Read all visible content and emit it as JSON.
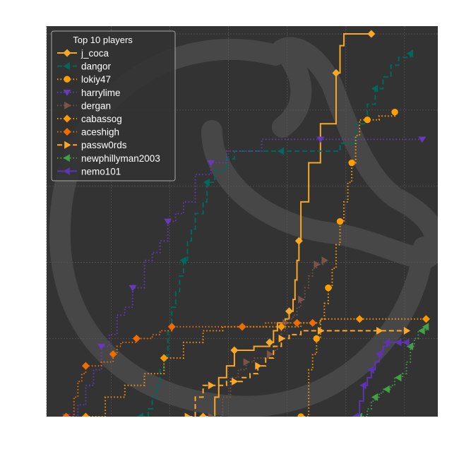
{
  "chart_data": {
    "type": "line",
    "title": "",
    "xlabel": "",
    "ylabel": "",
    "xlim": [
      0,
      100
    ],
    "ylim": [
      0,
      100
    ],
    "grid": true,
    "legend": {
      "title": "Top 10 players",
      "placement": "top-left"
    },
    "colors": {
      "background": "#333333",
      "grid": "#555555",
      "watermark": "#474747"
    },
    "series": [
      {
        "name": "j_coca",
        "color": "#F9A825",
        "linestyle": "solid",
        "marker": "diamond",
        "x": [
          40,
          43,
          44,
          46,
          48,
          51,
          53,
          56,
          57,
          58,
          59,
          61,
          62,
          63,
          63.5,
          64,
          64.5,
          65,
          67,
          70,
          74,
          75,
          76,
          80,
          83
        ],
        "y": [
          0,
          5,
          10,
          13,
          17,
          17,
          18,
          18,
          19,
          22,
          24,
          25,
          27,
          30,
          35,
          40,
          45,
          55,
          65,
          75,
          88,
          95,
          98,
          98,
          98
        ]
      },
      {
        "name": "dangor",
        "color": "#00695C",
        "linestyle": "dashed",
        "marker": "triangle-left",
        "x": [
          24,
          26,
          27,
          28,
          29,
          30,
          31,
          32,
          33,
          34,
          35,
          36,
          37,
          38,
          40,
          41,
          43,
          46,
          48,
          54,
          60,
          68,
          75,
          79,
          82,
          84,
          86,
          88,
          90,
          93
        ],
        "y": [
          0,
          2,
          5,
          8,
          12,
          15,
          22,
          28,
          32,
          36,
          40,
          45,
          48,
          52,
          55,
          60,
          63,
          66,
          68,
          68,
          68,
          68,
          70,
          75,
          80,
          84,
          87,
          90,
          92,
          93
        ]
      },
      {
        "name": "lokiy47",
        "color": "#FFA000",
        "linestyle": "dotted",
        "marker": "circle",
        "x": [
          65,
          67,
          68,
          69,
          70,
          71,
          72,
          73,
          74,
          75,
          76,
          77,
          78,
          79,
          80,
          82,
          85,
          89
        ],
        "y": [
          0,
          12,
          16,
          20,
          25,
          29,
          33,
          38,
          44,
          50,
          55,
          60,
          65,
          72,
          76,
          76,
          77,
          78
        ]
      },
      {
        "name": "harrylime",
        "color": "#673AB7",
        "linestyle": "dotted",
        "marker": "triangle-down",
        "x": [
          5,
          8,
          10,
          12,
          14,
          16,
          18,
          20,
          22,
          25,
          27,
          29,
          31,
          33,
          35,
          38,
          42,
          46,
          55,
          62,
          70,
          82,
          89,
          96
        ],
        "y": [
          0,
          3,
          8,
          12,
          18,
          21,
          26,
          28,
          33,
          40,
          42,
          45,
          50,
          52,
          55,
          62,
          65,
          68,
          71,
          71,
          71,
          71,
          71,
          71
        ]
      },
      {
        "name": "dergan",
        "color": "#795548",
        "linestyle": "dotted",
        "marker": "triangle-right",
        "x": [
          42,
          45,
          47,
          49,
          51,
          53,
          55,
          56,
          57,
          58,
          59,
          60,
          61,
          62,
          63,
          64,
          65,
          66,
          67,
          68,
          69,
          71
        ],
        "y": [
          0,
          5,
          10,
          12,
          14,
          15,
          15,
          15,
          16,
          17,
          18,
          22,
          24,
          25,
          26,
          28,
          30,
          33,
          36,
          38,
          39,
          40
        ]
      },
      {
        "name": "cabassog",
        "color": "#FF9800",
        "linestyle": "dotted",
        "marker": "diamond",
        "x": [
          10,
          15,
          20,
          25,
          30,
          35,
          40,
          45,
          50,
          52,
          55,
          57,
          60,
          65,
          70,
          75,
          80,
          85,
          90,
          95,
          97
        ],
        "y": [
          0,
          5,
          8,
          11,
          15,
          19,
          22,
          23,
          23,
          23,
          23,
          23,
          23,
          24,
          25,
          25,
          25,
          25,
          25,
          25,
          25
        ]
      },
      {
        "name": "aceshigh",
        "color": "#EF6C00",
        "linestyle": "dotted",
        "marker": "diamond",
        "x": [
          5,
          7,
          8,
          9,
          10,
          12,
          14,
          16,
          17,
          18,
          19,
          21,
          23,
          25,
          27,
          29,
          32,
          36,
          41,
          46,
          50,
          53,
          56,
          60,
          64,
          68
        ],
        "y": [
          0,
          5,
          9,
          11,
          13,
          13,
          14,
          14,
          16,
          18,
          19,
          19,
          20,
          20,
          21,
          22,
          23,
          23,
          23,
          23,
          23,
          23,
          24,
          24,
          24,
          24
        ]
      },
      {
        "name": "passw0rds",
        "color": "#FFA726",
        "linestyle": "dashed",
        "marker": "triangle-right",
        "x": [
          36,
          38,
          40,
          42,
          44,
          46,
          48,
          50,
          52,
          54,
          56,
          58,
          60,
          62,
          65,
          70,
          75,
          80,
          85,
          92
        ],
        "y": [
          0,
          5,
          8,
          8,
          8,
          9,
          9,
          10,
          11,
          13,
          15,
          18,
          20,
          21,
          22,
          22,
          22,
          22,
          22,
          22
        ]
      },
      {
        "name": "newphillyman2003",
        "color": "#43A047",
        "linestyle": "dotted",
        "marker": "triangle-left",
        "x": [
          80,
          82,
          83,
          84,
          85,
          86,
          87,
          88,
          89,
          90,
          91,
          92,
          93,
          94,
          95,
          96,
          97
        ],
        "y": [
          0,
          2,
          4,
          5,
          6,
          7,
          7,
          8,
          10,
          10,
          11,
          14,
          18,
          20,
          22,
          22,
          23
        ]
      },
      {
        "name": "nemo101",
        "color": "#5E35B1",
        "linestyle": "solid",
        "marker": "triangle-left",
        "x": [
          79,
          80,
          81,
          82,
          83,
          84,
          85,
          86,
          87,
          88,
          90,
          92
        ],
        "y": [
          0,
          4,
          8,
          10,
          12,
          14,
          16,
          18,
          19,
          19,
          19,
          19
        ]
      }
    ]
  }
}
